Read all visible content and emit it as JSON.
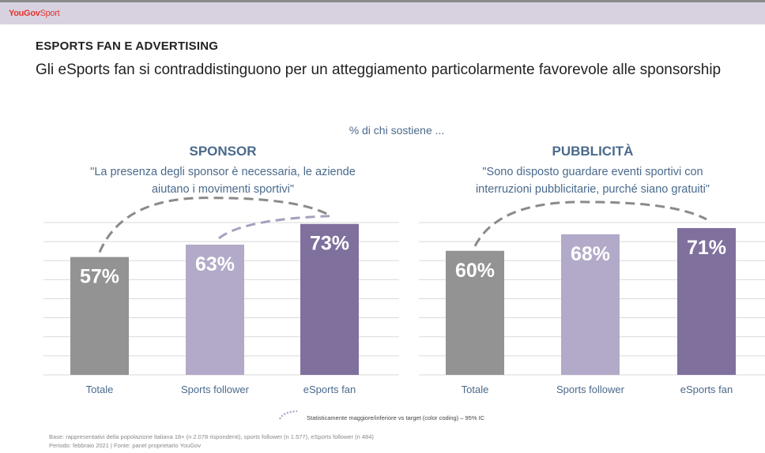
{
  "header": {
    "logo_brand": "YouGov",
    "logo_sub": "Sport"
  },
  "section_title": "ESPORTS FAN E ADVERTISING",
  "headline": "Gli eSports fan si contraddistinguono per un atteggiamento particolarmente favorevole alle  sponsorship",
  "subtitle": "% di chi sostiene ...",
  "panels": [
    {
      "title": "SPONSOR",
      "quote_line1": "\"La presenza degli sponsor è necessaria, le aziende",
      "quote_line2": "aiutano i movimenti sportivi\""
    },
    {
      "title": "PUBBLICITÀ",
      "quote_line1": "\"Sono disposto guardare eventi sportivi con",
      "quote_line2": "interruzioni pubblicitarie, purché siano gratuiti\""
    }
  ],
  "legend_note": "Statisticamente maggiore/inferiore vs target (color coding) – 95% IC",
  "base_line1": "Base: rappresentativi della popolazione italiana 18+ (n 2.078 rispondenti), sports follower (n 1.577), eSports follower (n 484)",
  "base_line2": "Periodo: febbraio 2021  |  Fonte: panel proprietario YouGov",
  "colors": {
    "totale": "#939393",
    "sports_follower": "#b3a9c8",
    "esports_fan": "#80709e",
    "text_blue": "#4a6a8c",
    "grid": "#d9d9d9",
    "dashes": "#8a8a8a",
    "dashes_light": "#a79fbf"
  },
  "chart_data": [
    {
      "type": "bar",
      "title": "SPONSOR",
      "categories": [
        "Totale",
        "Sports follower",
        "eSports fan"
      ],
      "values": [
        57,
        63,
        73
      ],
      "value_labels": [
        "57%",
        "63%",
        "73%"
      ],
      "ylim": [
        0,
        100
      ],
      "grid": true,
      "significance_arcs": [
        {
          "from": "Totale",
          "to": "eSports fan",
          "style": "dark"
        },
        {
          "from": "Sports follower",
          "to": "eSports fan",
          "style": "light"
        }
      ]
    },
    {
      "type": "bar",
      "title": "PUBBLICITÀ",
      "categories": [
        "Totale",
        "Sports follower",
        "eSports fan"
      ],
      "values": [
        60,
        68,
        71
      ],
      "value_labels": [
        "60%",
        "68%",
        "71%"
      ],
      "ylim": [
        0,
        100
      ],
      "grid": true,
      "significance_arcs": [
        {
          "from": "Totale",
          "to": "eSports fan",
          "style": "dark"
        }
      ]
    }
  ]
}
